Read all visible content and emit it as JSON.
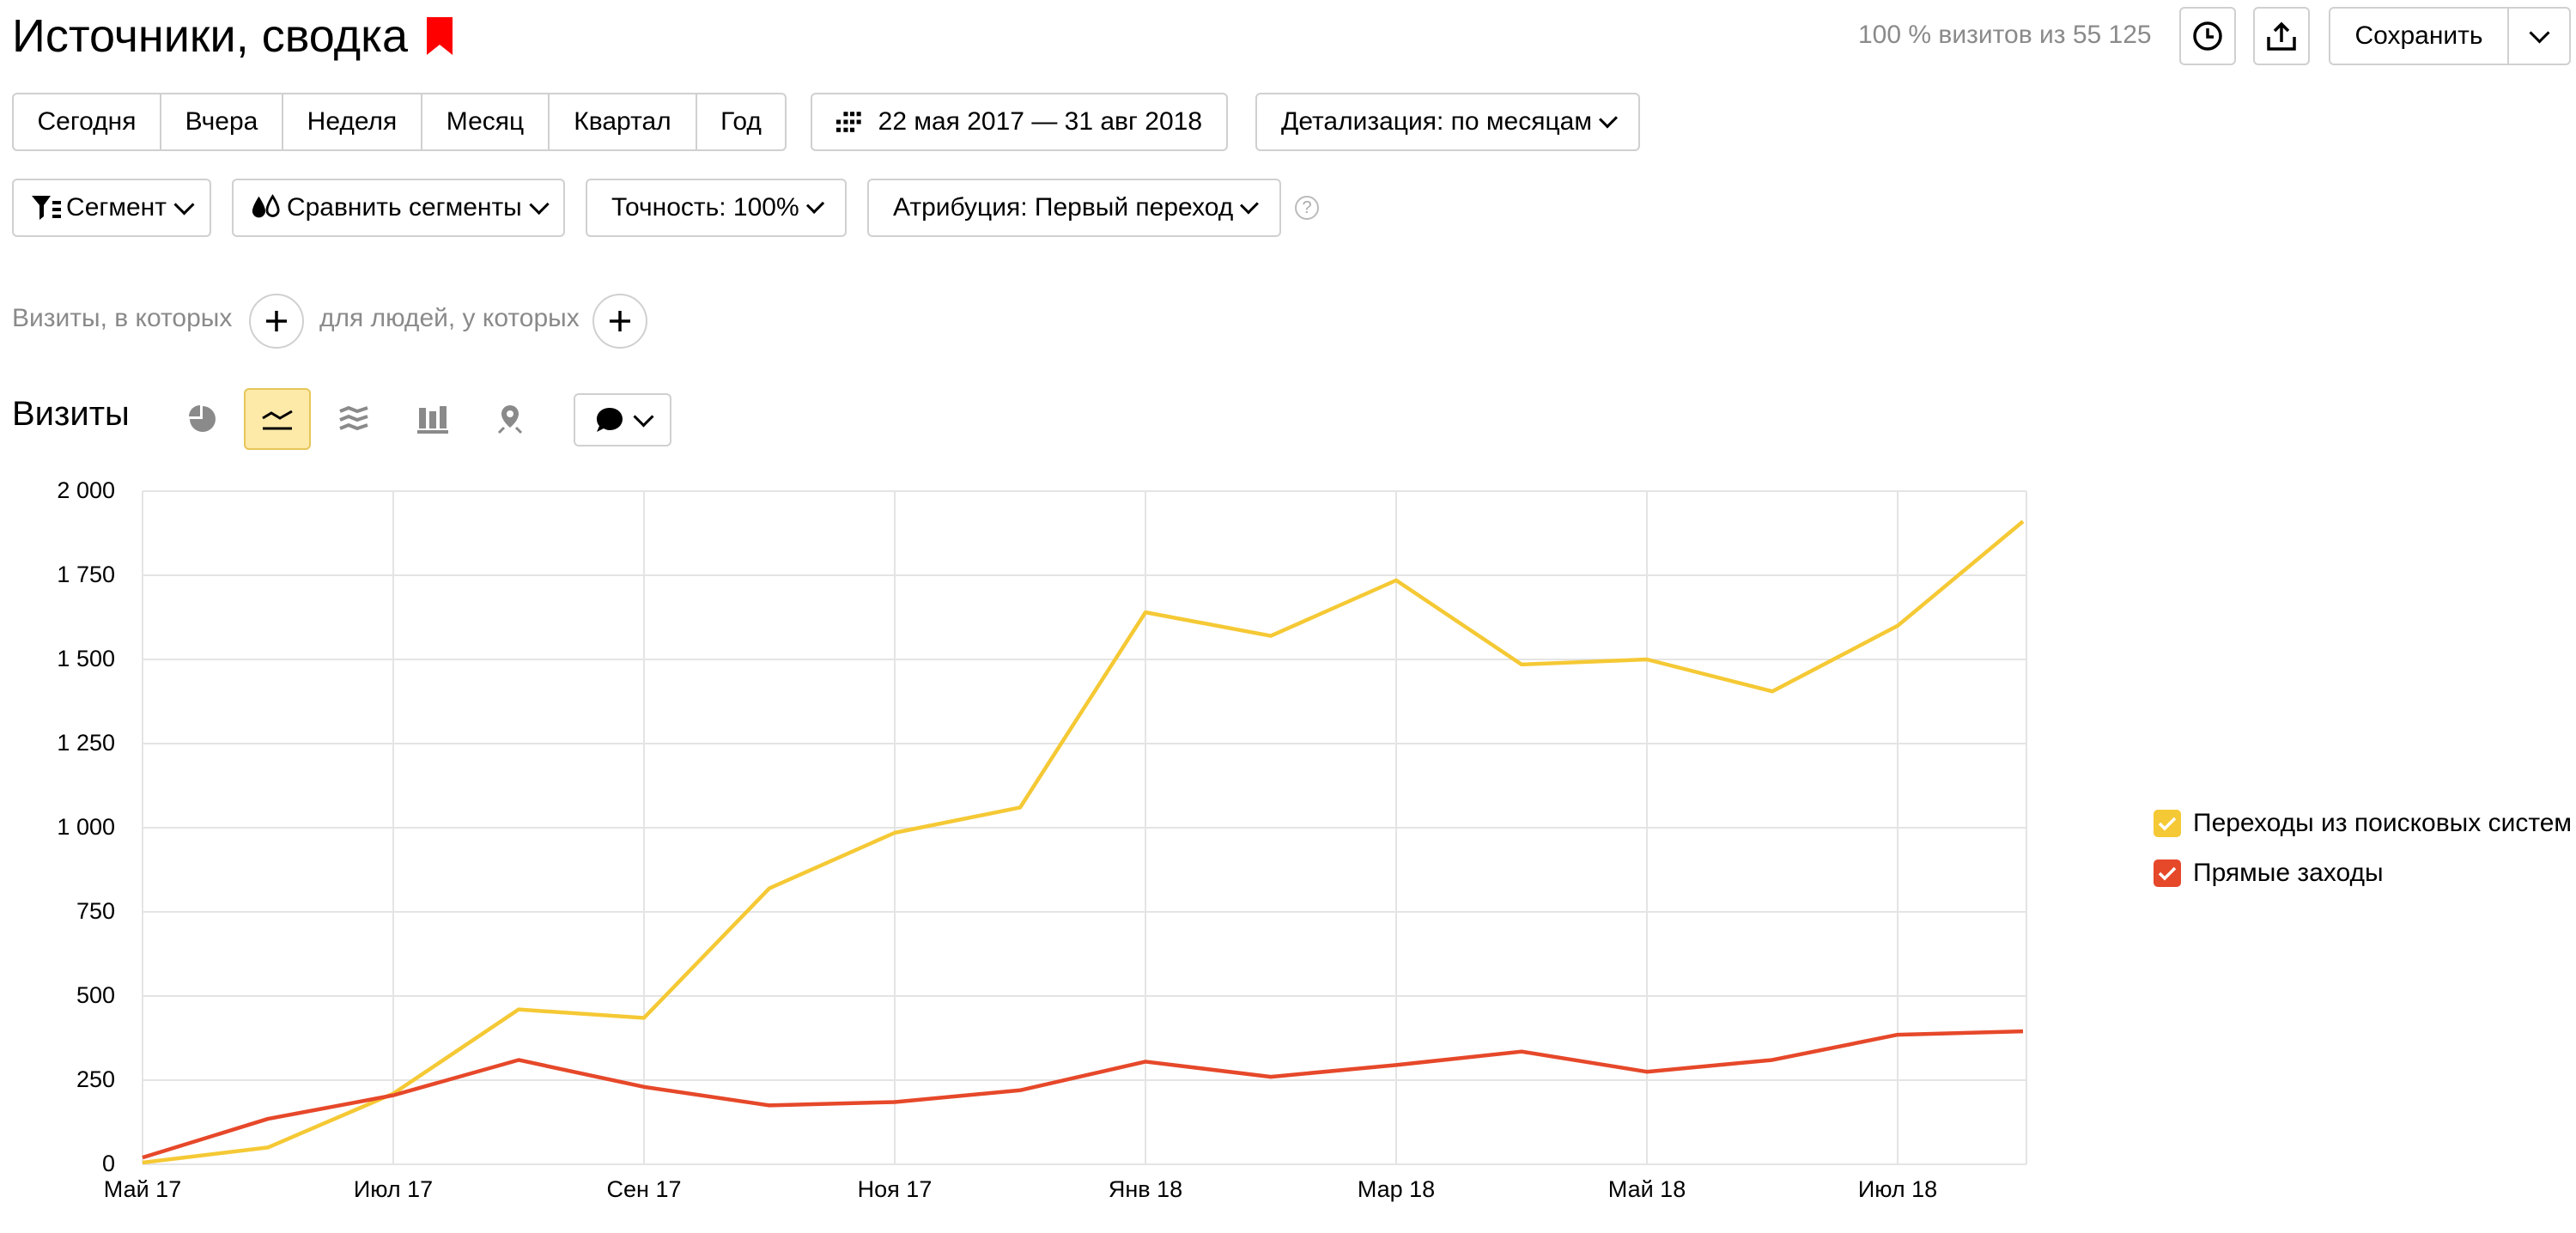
{
  "header": {
    "title": "Источники, сводка",
    "sample_info": "100 % визитов из 55 125",
    "save_label": "Сохранить"
  },
  "period_buttons": [
    "Сегодня",
    "Вчера",
    "Неделя",
    "Месяц",
    "Квартал",
    "Год"
  ],
  "date_range": "22 мая 2017 — 31 авг 2018",
  "detail_label": "Детализация: по месяцам",
  "filters": {
    "segment": "Сегмент",
    "compare": "Сравнить сегменты",
    "accuracy": "Точность: 100%",
    "attribution": "Атрибуция: Первый переход"
  },
  "conditions": {
    "visits_label": "Визиты, в которых",
    "people_label": "для людей, у которых"
  },
  "chart_section": {
    "title": "Визиты"
  },
  "colors": {
    "search": "#f5c935",
    "direct": "#e6482a",
    "active_tab": "#fde9a8",
    "bookmark": "#ff0000"
  },
  "chart_data": {
    "type": "line",
    "x": [
      "Май 17",
      "Июн 17",
      "Июл 17",
      "Авг 17",
      "Сен 17",
      "Окт 17",
      "Ноя 17",
      "Дек 17",
      "Янв 18",
      "Фев 18",
      "Мар 18",
      "Апр 18",
      "Май 18",
      "Июн 18",
      "Июл 18",
      "Авг 18"
    ],
    "x_tick_labels": [
      "Май 17",
      "Июл 17",
      "Сен 17",
      "Ноя 17",
      "Янв 18",
      "Мар 18",
      "Май 18",
      "Июл 18"
    ],
    "y_tick_labels": [
      "0",
      "250",
      "500",
      "750",
      "1 000",
      "1 250",
      "1 500",
      "1 750",
      "2 000"
    ],
    "ylim": [
      0,
      2000
    ],
    "grid": true,
    "legend_position": "right",
    "series": [
      {
        "name": "Переходы из поисковых систем",
        "values": [
          5,
          50,
          210,
          460,
          435,
          820,
          985,
          1060,
          1640,
          1570,
          1735,
          1485,
          1500,
          1405,
          1600,
          1910
        ]
      },
      {
        "name": "Прямые заходы",
        "values": [
          20,
          135,
          205,
          310,
          230,
          175,
          185,
          220,
          305,
          260,
          295,
          335,
          275,
          310,
          385,
          395
        ]
      }
    ]
  }
}
